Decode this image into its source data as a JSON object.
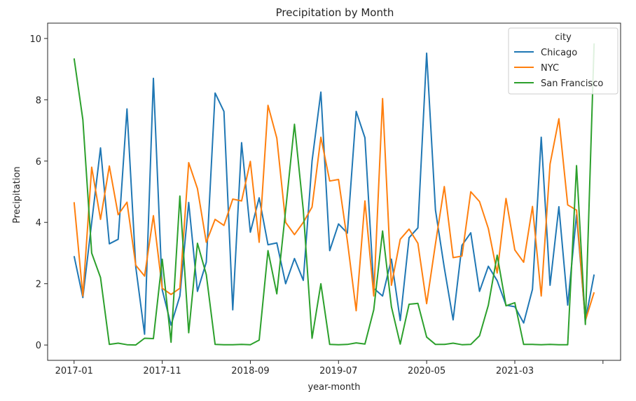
{
  "chart_data": {
    "type": "line",
    "title": "Precipitation by Month",
    "xlabel": "year-month",
    "ylabel": "Precipitation",
    "ylim": [
      -0.5,
      10.5
    ],
    "xlim": [
      -3,
      62
    ],
    "y_ticks": [
      0,
      2,
      4,
      6,
      8,
      10
    ],
    "x_ticks": [
      {
        "pos": 0,
        "label": "2017-01"
      },
      {
        "pos": 10,
        "label": "2017-11"
      },
      {
        "pos": 20,
        "label": "2018-09"
      },
      {
        "pos": 30,
        "label": "2019-07"
      },
      {
        "pos": 40,
        "label": "2020-05"
      },
      {
        "pos": 50,
        "label": "2021-03"
      },
      {
        "pos": 60,
        "label": ""
      }
    ],
    "grid": false,
    "legend": {
      "title": "city",
      "placement": "top-right"
    },
    "series": [
      {
        "name": "Chicago",
        "color": "#1f77b4",
        "values": [
          2.9,
          1.55,
          4.0,
          6.43,
          3.3,
          3.45,
          7.7,
          2.55,
          0.35,
          8.7,
          1.8,
          0.65,
          1.6,
          4.65,
          1.75,
          2.7,
          8.22,
          7.62,
          1.15,
          6.6,
          3.68,
          4.8,
          3.27,
          3.33,
          2.0,
          2.82,
          2.11,
          6.0,
          8.25,
          3.08,
          3.95,
          3.65,
          7.62,
          6.76,
          1.85,
          1.6,
          2.8,
          0.8,
          3.5,
          3.82,
          9.52,
          4.4,
          2.52,
          0.82,
          3.25,
          3.66,
          1.75,
          2.57,
          2.1,
          1.3,
          1.25,
          0.72,
          1.82,
          6.78,
          1.95,
          4.51,
          1.3,
          4.25,
          0.8,
          2.3
        ]
      },
      {
        "name": "NYC",
        "color": "#ff7f0e",
        "values": [
          4.66,
          1.6,
          5.8,
          4.1,
          5.84,
          4.25,
          4.66,
          2.6,
          2.25,
          4.22,
          1.85,
          1.65,
          1.85,
          5.95,
          5.1,
          3.35,
          4.1,
          3.9,
          4.76,
          4.7,
          5.99,
          3.35,
          7.82,
          6.75,
          4.0,
          3.6,
          4.0,
          4.5,
          6.78,
          5.35,
          5.4,
          3.4,
          1.12,
          4.7,
          1.6,
          8.04,
          1.95,
          3.45,
          3.78,
          3.32,
          1.35,
          3.3,
          5.17,
          2.85,
          2.9,
          5.0,
          4.68,
          3.8,
          2.35,
          4.78,
          3.1,
          2.7,
          4.52,
          1.6,
          5.9,
          7.38,
          4.57,
          4.4,
          0.8,
          1.72
        ]
      },
      {
        "name": "San Francisco",
        "color": "#2ca02c",
        "values": [
          9.35,
          7.35,
          3.0,
          2.2,
          0.02,
          0.06,
          0.01,
          0.0,
          0.22,
          0.21,
          2.8,
          0.09,
          4.86,
          0.4,
          3.32,
          2.3,
          0.02,
          0.01,
          0.01,
          0.02,
          0.01,
          0.16,
          3.08,
          1.67,
          4.4,
          7.2,
          4.4,
          0.22,
          2.0,
          0.02,
          0.01,
          0.02,
          0.07,
          0.03,
          1.15,
          3.72,
          1.25,
          0.03,
          1.33,
          1.36,
          0.26,
          0.02,
          0.02,
          0.06,
          0.01,
          0.02,
          0.3,
          1.3,
          2.93,
          1.28,
          1.38,
          0.02,
          0.02,
          0.01,
          0.02,
          0.01,
          0.01,
          5.85,
          0.67,
          9.84
        ]
      }
    ]
  }
}
